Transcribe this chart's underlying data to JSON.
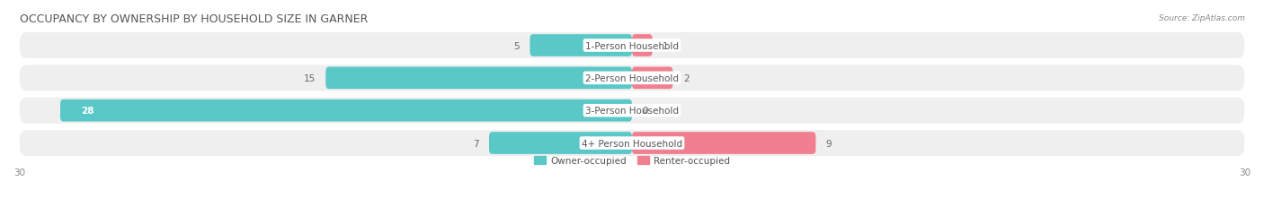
{
  "title": "OCCUPANCY BY OWNERSHIP BY HOUSEHOLD SIZE IN GARNER",
  "source": "Source: ZipAtlas.com",
  "categories": [
    "1-Person Household",
    "2-Person Household",
    "3-Person Household",
    "4+ Person Household"
  ],
  "owner_values": [
    5,
    15,
    28,
    7
  ],
  "renter_values": [
    1,
    2,
    0,
    9
  ],
  "owner_color": "#5BC8C8",
  "renter_color": "#F08090",
  "row_bg_color": "#EFEFEF",
  "axis_max": 30,
  "title_fontsize": 9,
  "label_fontsize": 7.5,
  "value_fontsize": 7.5,
  "tick_fontsize": 7.5,
  "figsize": [
    14.06,
    2.32
  ],
  "dpi": 100
}
